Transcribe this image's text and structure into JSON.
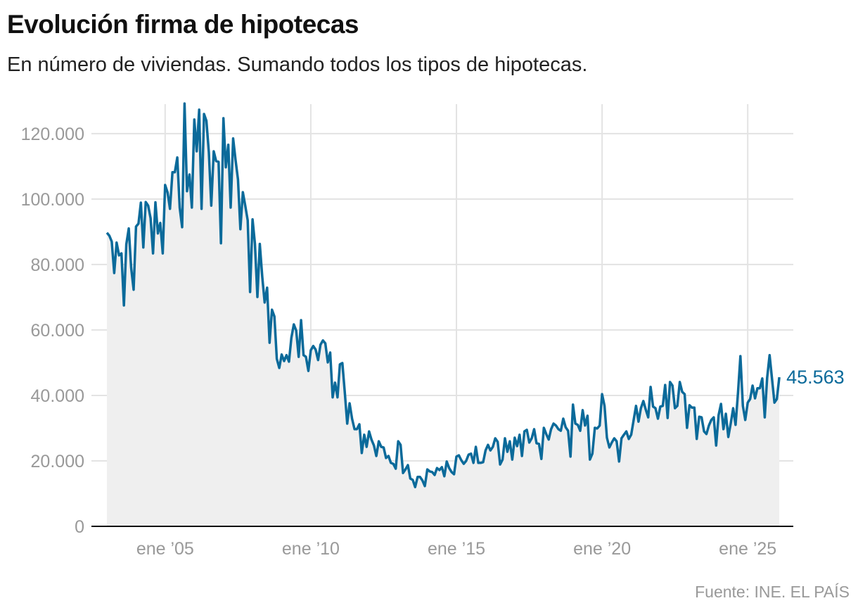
{
  "title": "Evolución firma de hipotecas",
  "subtitle": "En número de viviendas. Sumando todos los tipos de hipotecas.",
  "source": "Fuente: INE. EL PAÍS",
  "chart_data": {
    "type": "area",
    "title": "Evolución firma de hipotecas",
    "subtitle": "En número de viviendas. Sumando todos los tipos de hipotecas.",
    "xlabel": "",
    "ylabel": "",
    "ylim": [
      0,
      129000
    ],
    "y_ticks": [
      0,
      20000,
      40000,
      60000,
      80000,
      100000,
      120000
    ],
    "y_tick_labels": [
      "0",
      "20.000",
      "40.000",
      "60.000",
      "80.000",
      "100.000",
      "120.000"
    ],
    "x_ticks": [
      "2005-01",
      "2010-01",
      "2015-01",
      "2020-01",
      "2025-01"
    ],
    "x_tick_labels": [
      "ene ’05",
      "ene ’10",
      "ene ’15",
      "ene ’20",
      "ene ’25"
    ],
    "grid": true,
    "line_color": "#0b6a9a",
    "fill_color": "#efefef",
    "end_label": "45.563",
    "frequency": "monthly",
    "series_by_year": {
      "2003": [
        89700,
        88800,
        87000,
        77400,
        86700,
        82800,
        83400,
        67500,
        86200,
        91000,
        79000,
        72300
      ],
      "2004": [
        91600,
        92500,
        98900,
        85200,
        99100,
        98000,
        94200,
        83400,
        99000,
        89500,
        92700,
        83400
      ],
      "2005": [
        104300,
        102000,
        97000,
        108200,
        108200,
        112700,
        97400,
        91400,
        129200,
        102400,
        107500,
        97400
      ],
      "2006": [
        124300,
        114600,
        127300,
        97000,
        126000,
        123900,
        114200,
        98000,
        114600,
        111600,
        111400,
        86500
      ],
      "2007": [
        124700,
        109700,
        116600,
        97400,
        118500,
        112000,
        106000,
        90800,
        102100,
        98000,
        93500,
        71600
      ],
      "2008": [
        93800,
        86300,
        70100,
        86300,
        76300,
        68400,
        72900,
        56100,
        66200,
        64100,
        51200,
        48400
      ],
      "2009": [
        52500,
        50500,
        52300,
        50300,
        57600,
        61700,
        59800,
        51800,
        63000,
        52300,
        51800,
        47500
      ],
      "2010": [
        53800,
        55100,
        54000,
        50800,
        55500,
        56800,
        55900,
        50100,
        53100,
        39400,
        43900,
        39400
      ],
      "2011": [
        49500,
        49900,
        41100,
        31400,
        37600,
        32900,
        29700,
        29700,
        31200,
        22400,
        28000,
        24300
      ],
      "2012": [
        29000,
        26500,
        24700,
        21500,
        26000,
        24300,
        24100,
        20900,
        21500,
        19400,
        19100,
        17600
      ],
      "2013": [
        26000,
        24900,
        16300,
        17400,
        18700,
        14600,
        14200,
        12000,
        15100,
        15100,
        14000,
        12300
      ],
      "2014": [
        17400,
        16800,
        16600,
        15700,
        17800,
        17200,
        18100,
        15300,
        19800,
        17800,
        16600,
        15900
      ],
      "2015": [
        21300,
        21700,
        20200,
        19100,
        20000,
        21900,
        22200,
        19400,
        24300,
        19400,
        19400,
        19600
      ],
      "2016": [
        23200,
        24900,
        23200,
        24300,
        26900,
        25800,
        18900,
        20400,
        26900,
        22800,
        26000,
        20400
      ],
      "2017": [
        27100,
        24500,
        28000,
        21500,
        29000,
        29500,
        25600,
        26900,
        29700,
        25400,
        25200,
        20600
      ],
      "2018": [
        30100,
        28200,
        26500,
        29700,
        31400,
        30800,
        29700,
        29200,
        32900,
        30300,
        29200,
        21300
      ],
      "2019": [
        37200,
        31400,
        31000,
        29200,
        35500,
        30800,
        33800,
        20400,
        22200,
        30100,
        29900,
        30800
      ],
      "2020": [
        40400,
        36800,
        27100,
        24100,
        25600,
        26900,
        26000,
        19800,
        26900,
        28000,
        29000,
        26700
      ],
      "2021": [
        28000,
        32500,
        36800,
        32000,
        36100,
        38300,
        35700,
        33300,
        42600,
        36600,
        36100,
        32900
      ],
      "2022": [
        36600,
        36800,
        43200,
        33100,
        44100,
        43000,
        36100,
        36800,
        44100,
        41100,
        40400,
        30100
      ],
      "2023": [
        37000,
        36300,
        36300,
        26700,
        33500,
        33300,
        29000,
        28200,
        30800,
        32500,
        33300,
        24700
      ],
      "2024": [
        34000,
        37400,
        29700,
        34400,
        27300,
        31400,
        36100,
        31000,
        40900,
        52000,
        36800,
        32500
      ],
      "2025": [
        37800,
        38900,
        43000,
        39100,
        42200,
        42200,
        45200,
        33300,
        45400,
        52300,
        45200,
        37800
      ],
      "2026": [
        38900,
        45563
      ]
    }
  }
}
